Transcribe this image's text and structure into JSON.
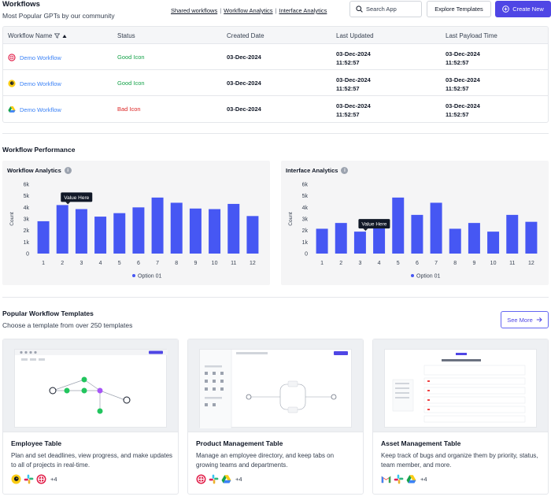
{
  "header": {
    "title": "Workflows",
    "subtitle": "Most Popular GPTs by our community",
    "links": [
      "Shared workflows",
      "Workflow Analytics",
      "Interface Analytics"
    ],
    "search_placeholder": "Search App",
    "explore_label": "Explore Templates",
    "create_label": "Create New"
  },
  "table": {
    "columns": [
      "Workflow Name",
      "Status",
      "Created Date",
      "Last Updated",
      "Last Payload Time"
    ],
    "rows": [
      {
        "name": "Demo Workflow",
        "icon": "red-circle-app-icon",
        "status": "Good Icon",
        "created": "03-Dec-2024",
        "updated_date": "03-Dec-2024",
        "updated_time": "11:52:57",
        "payload_date": "03-Dec-2024",
        "payload_time": "11:52:57"
      },
      {
        "name": "Demo Workflow",
        "icon": "mailchimp-icon",
        "status": "Good Icon",
        "created": "03-Dec-2024",
        "updated_date": "03-Dec-2024",
        "updated_time": "11:52:57",
        "payload_date": "03-Dec-2024",
        "payload_time": "11:52:57"
      },
      {
        "name": "Demo Workflow",
        "icon": "google-drive-icon",
        "status": "Bad Icon",
        "created": "03-Dec-2024",
        "updated_date": "03-Dec-2024",
        "updated_time": "11:52:57",
        "payload_date": "03-Dec-2024",
        "payload_time": "11:52:57"
      }
    ]
  },
  "performance": {
    "title": "Workflow Performance"
  },
  "chart_data": [
    {
      "type": "bar",
      "title": "Workflow Analytics",
      "ylabel": "Count",
      "ylim": [
        0,
        6000
      ],
      "yticks": [
        "0",
        "1k",
        "2k",
        "3k",
        "4k",
        "5k",
        "6k"
      ],
      "categories": [
        "1",
        "2",
        "3",
        "4",
        "5",
        "6",
        "7",
        "8",
        "9",
        "10",
        "11",
        "12"
      ],
      "series": [
        {
          "name": "Option 01",
          "values": [
            2800,
            4200,
            3850,
            3200,
            3500,
            4000,
            4850,
            4400,
            3900,
            3850,
            4300,
            3250
          ]
        }
      ],
      "tooltip": {
        "label": "Value Here",
        "category": "2"
      },
      "legend": "bottom",
      "color": "#4657f3"
    },
    {
      "type": "bar",
      "title": "Interface Analytics",
      "ylabel": "Count",
      "ylim": [
        0,
        6000
      ],
      "yticks": [
        "0",
        "1k",
        "2k",
        "3k",
        "4k",
        "5k",
        "6k"
      ],
      "categories": [
        "1",
        "2",
        "3",
        "4",
        "5",
        "6",
        "7",
        "8",
        "9",
        "10",
        "11",
        "12"
      ],
      "series": [
        {
          "name": "Option 01",
          "values": [
            2150,
            2650,
            1900,
            2850,
            4850,
            3350,
            4400,
            2150,
            2650,
            1900,
            3350,
            2750
          ]
        }
      ],
      "tooltip": {
        "label": "Value Here",
        "category": "3"
      },
      "legend": "bottom",
      "color": "#4657f3"
    }
  ],
  "templates": {
    "title": "Popular Workflow Templates",
    "subtitle": "Choose a template from over 250 templates",
    "see_more_label": "See More",
    "cards": [
      {
        "title": "Employee Table",
        "desc": "Plan and set deadlines, view progress, and make updates to all of projects in real-time.",
        "apps": [
          "mailchimp-icon",
          "slack-icon",
          "red-circle-app-icon"
        ],
        "more": "+4"
      },
      {
        "title": "Product Management Table",
        "desc": "Manage an employee directory, and keep tabs on growing teams and departments.",
        "apps": [
          "red-circle-app-icon",
          "slack-icon",
          "google-drive-icon"
        ],
        "more": "+4"
      },
      {
        "title": "Asset Management Table",
        "desc": "Keep track of bugs and organize them by priority, status, team member, and more.",
        "apps": [
          "gmail-icon",
          "slack-icon",
          "google-drive-icon"
        ],
        "more": "+4"
      }
    ]
  },
  "colors": {
    "primary": "#4f46e5",
    "link": "#3b82f6",
    "good": "#16a34a",
    "bad": "#dc2626",
    "bar": "#4657f3"
  }
}
